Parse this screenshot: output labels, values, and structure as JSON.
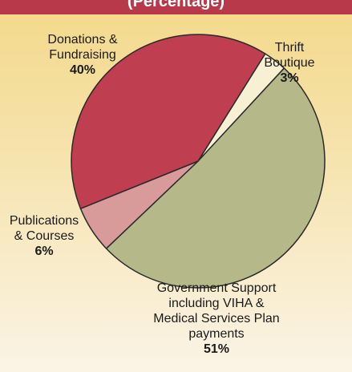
{
  "header": {
    "title_fragment": "(Percentage)"
  },
  "colors": {
    "background_top": "#f3d98a",
    "background_bottom": "#fbf4e6",
    "header_bar": "#b83a4a",
    "slice_outline": "#2a2a2a"
  },
  "chart_data": {
    "type": "pie",
    "title": "",
    "slices": [
      {
        "label_lines": [
          "Thrift",
          "Boutique"
        ],
        "value": 3,
        "percent_label": "3%",
        "color": "#f8f0d2"
      },
      {
        "label_lines": [
          "Government Support",
          "including VIHA &",
          "Medical Services Plan",
          "payments"
        ],
        "value": 51,
        "percent_label": "51%",
        "color": "#b5b98a"
      },
      {
        "label_lines": [
          "Publications",
          "& Courses"
        ],
        "value": 6,
        "percent_label": "6%",
        "color": "#d99a9a"
      },
      {
        "label_lines": [
          "Donations &",
          "Fundraising"
        ],
        "value": 40,
        "percent_label": "40%",
        "color": "#bf3e50"
      }
    ]
  }
}
